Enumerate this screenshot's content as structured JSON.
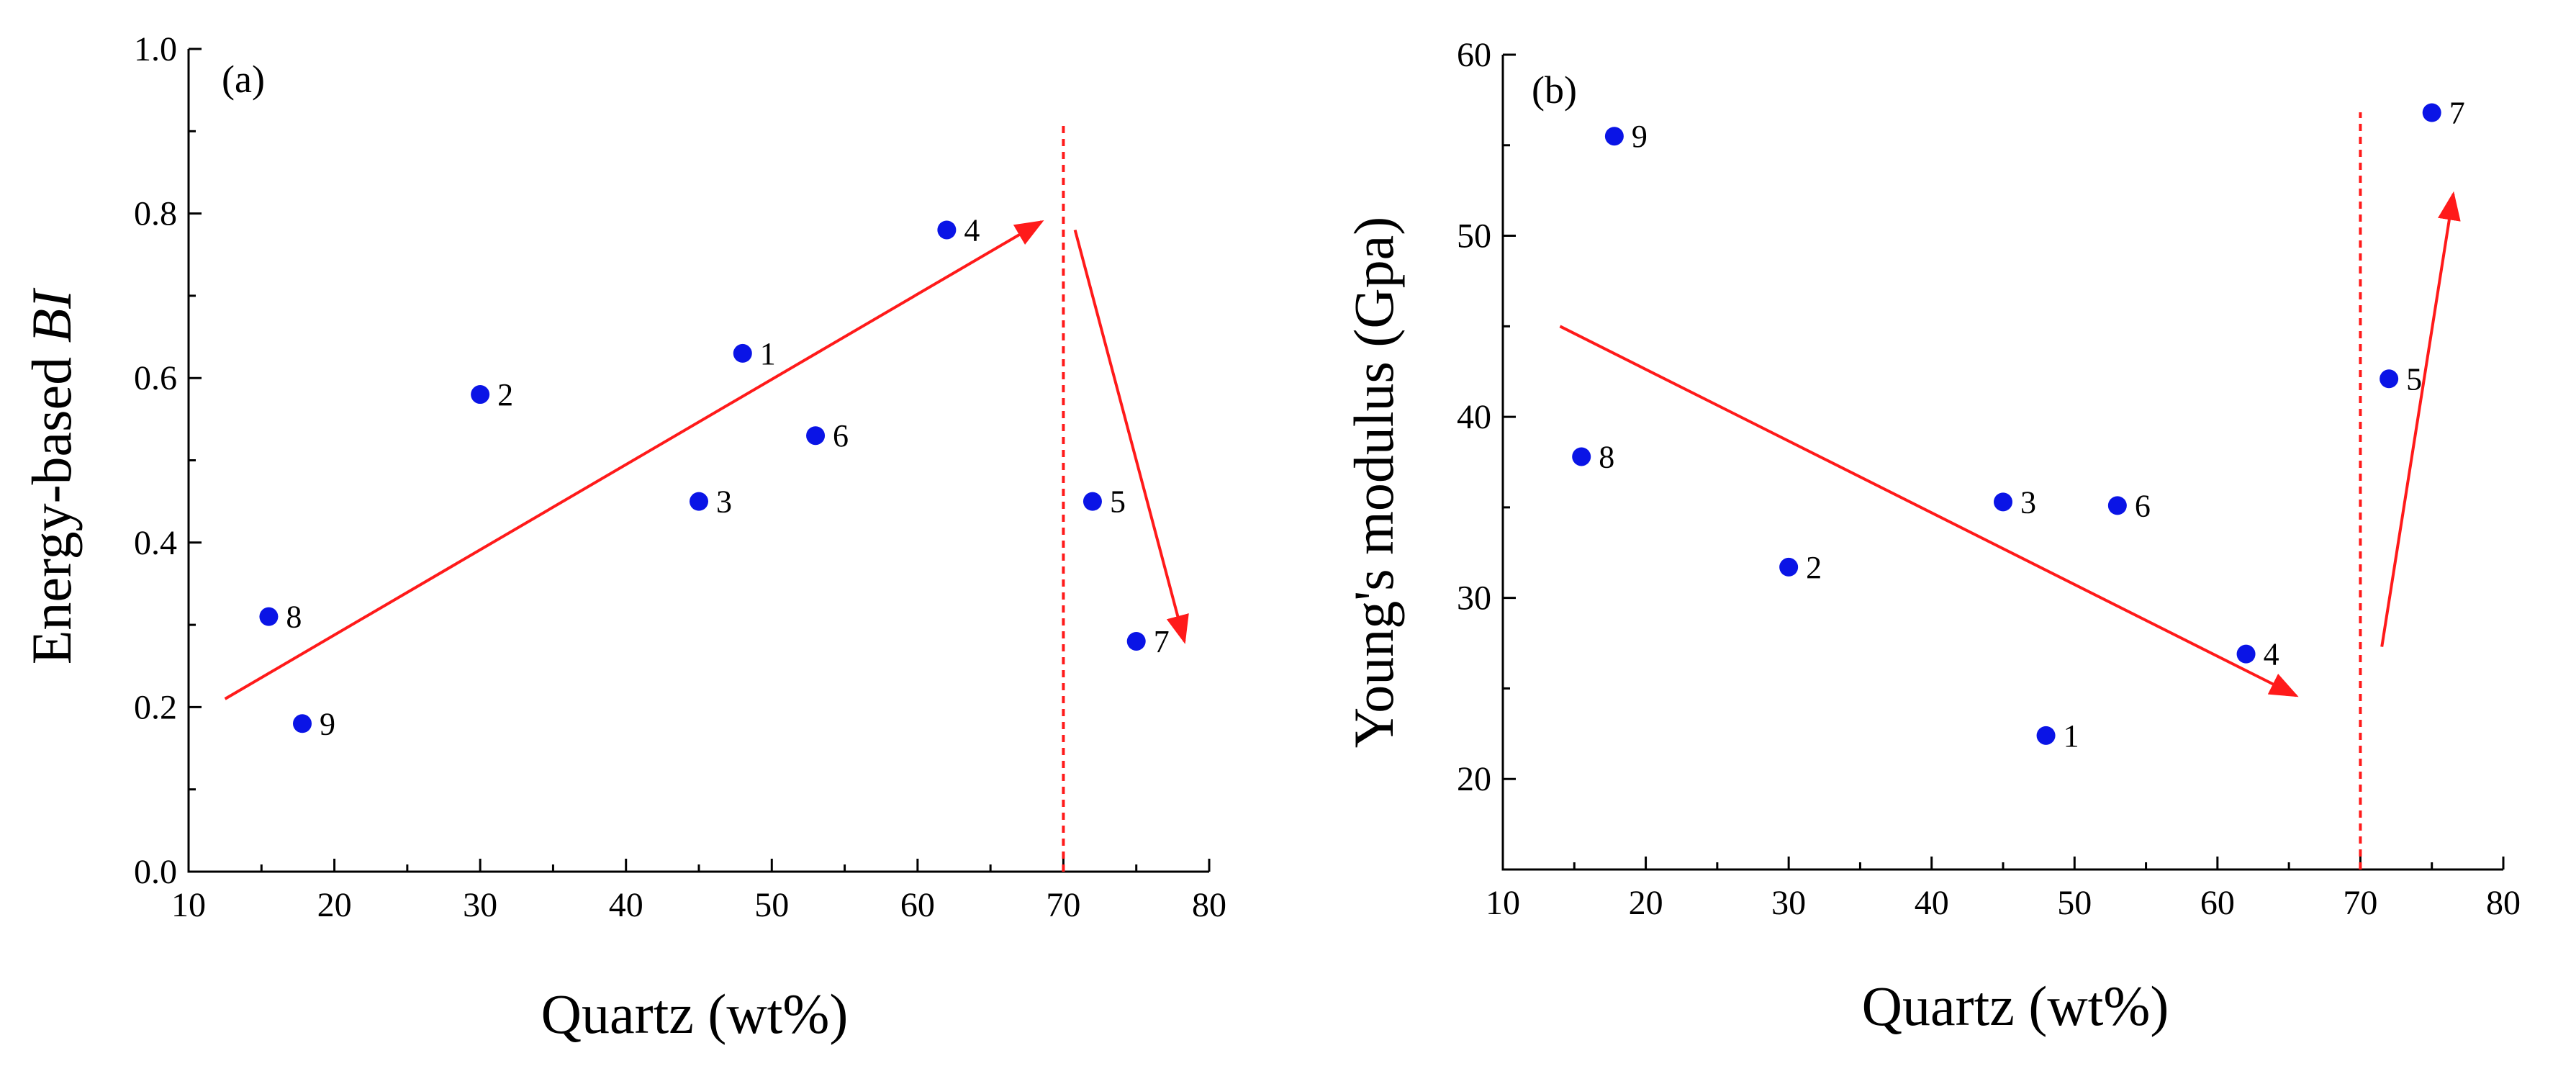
{
  "colors": {
    "point": "#0a14e6",
    "trend": "#ff1a1a",
    "axis": "#000000"
  },
  "chart_data": [
    {
      "type": "scatter",
      "panel_label": "(a)",
      "xlabel": "Quartz (wt%)",
      "ylabel_prefix": "Energy-based ",
      "ylabel_italic": "BI",
      "xlim": [
        10,
        80
      ],
      "ylim": [
        0.0,
        1.0
      ],
      "xticks": [
        10,
        20,
        30,
        40,
        50,
        60,
        70,
        80
      ],
      "xtick_labels": [
        "10",
        "20",
        "30",
        "40",
        "50",
        "60",
        "70",
        "80"
      ],
      "yticks": [
        0.0,
        0.2,
        0.4,
        0.6,
        0.8,
        1.0
      ],
      "ytick_labels": [
        "0.0",
        "0.2",
        "0.4",
        "0.6",
        "0.8",
        "1.0"
      ],
      "points": [
        {
          "label": "1",
          "x": 48,
          "y": 0.63
        },
        {
          "label": "2",
          "x": 30,
          "y": 0.58
        },
        {
          "label": "3",
          "x": 45,
          "y": 0.45
        },
        {
          "label": "4",
          "x": 62,
          "y": 0.78
        },
        {
          "label": "5",
          "x": 72,
          "y": 0.45
        },
        {
          "label": "6",
          "x": 53,
          "y": 0.53
        },
        {
          "label": "7",
          "x": 75,
          "y": 0.28
        },
        {
          "label": "8",
          "x": 15.5,
          "y": 0.31
        },
        {
          "label": "9",
          "x": 17.8,
          "y": 0.18
        }
      ],
      "threshold_x": 70,
      "trend_arrows": [
        {
          "from": [
            12.5,
            0.21
          ],
          "to": [
            68.5,
            0.79
          ]
        },
        {
          "from": [
            70.8,
            0.78
          ],
          "to": [
            78.3,
            0.28
          ]
        }
      ]
    },
    {
      "type": "scatter",
      "panel_label": "(b)",
      "xlabel": "Quartz (wt%)",
      "ylabel_prefix": "Young's modulus (Gpa)",
      "ylabel_italic": "",
      "xlim": [
        10,
        80
      ],
      "ylim": [
        15,
        60
      ],
      "xticks": [
        10,
        20,
        30,
        40,
        50,
        60,
        70,
        80
      ],
      "xtick_labels": [
        "10",
        "20",
        "30",
        "40",
        "50",
        "60",
        "70",
        "80"
      ],
      "yticks": [
        20,
        30,
        40,
        50,
        60
      ],
      "ytick_labels": [
        "20",
        "30",
        "40",
        "50",
        "60"
      ],
      "points": [
        {
          "label": "1",
          "x": 48,
          "y": 22.4
        },
        {
          "label": "2",
          "x": 30,
          "y": 31.7
        },
        {
          "label": "3",
          "x": 45,
          "y": 35.3
        },
        {
          "label": "4",
          "x": 62,
          "y": 26.9
        },
        {
          "label": "5",
          "x": 72,
          "y": 42.1
        },
        {
          "label": "6",
          "x": 53,
          "y": 35.1
        },
        {
          "label": "7",
          "x": 75,
          "y": 56.8
        },
        {
          "label": "8",
          "x": 15.5,
          "y": 37.8
        },
        {
          "label": "9",
          "x": 17.8,
          "y": 55.5
        }
      ],
      "threshold_x": 70,
      "trend_arrows": [
        {
          "from": [
            14,
            45
          ],
          "to": [
            65.5,
            24.6
          ]
        },
        {
          "from": [
            71.5,
            27.3
          ],
          "to": [
            76.5,
            52.3
          ]
        }
      ]
    }
  ]
}
